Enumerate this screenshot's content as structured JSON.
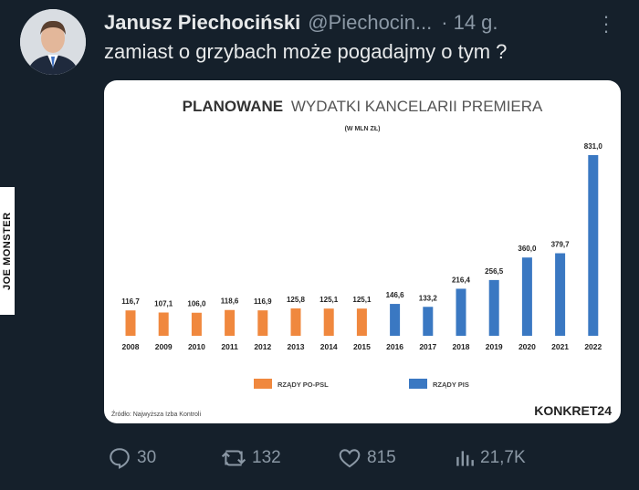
{
  "author": {
    "name": "Janusz Piechociński",
    "handle": "@Piechocin...",
    "time": "14 g."
  },
  "tweet": {
    "text": "zamiast o grzybach może pogadajmy o tym ?"
  },
  "watermark": "JOE MONSTER",
  "actions": {
    "replies": "30",
    "retweets": "132",
    "likes": "815",
    "views": "21,7K"
  },
  "colors": {
    "orange": "#f0883e",
    "blue": "#3a78c2"
  },
  "chart_data": {
    "type": "bar",
    "title_part1": "PLANOWANE",
    "title_part2": "WYDATKI KANCELARII PREMIERA",
    "subtitle": "(W MLN ZŁ)",
    "categories": [
      "2008",
      "2009",
      "2010",
      "2011",
      "2012",
      "2013",
      "2014",
      "2015",
      "2016",
      "2017",
      "2018",
      "2019",
      "2020",
      "2021",
      "2022"
    ],
    "values": [
      116.7,
      107.1,
      106.0,
      118.6,
      116.9,
      125.8,
      125.1,
      125.1,
      146.6,
      133.2,
      216.4,
      256.5,
      360.0,
      379.7,
      831.0
    ],
    "value_labels": [
      "116,7",
      "107,1",
      "106,0",
      "118,6",
      "116,9",
      "125,8",
      "125,1",
      "125,1",
      "146,6",
      "133,2",
      "216,4",
      "256,5",
      "360,0",
      "379,7",
      "831,0"
    ],
    "groups": [
      "orange",
      "orange",
      "orange",
      "orange",
      "orange",
      "orange",
      "orange",
      "orange",
      "blue",
      "blue",
      "blue",
      "blue",
      "blue",
      "blue",
      "blue"
    ],
    "legend": [
      {
        "label": "RZĄDY PO-PSL",
        "color": "orange"
      },
      {
        "label": "RZĄDY PIS",
        "color": "blue"
      }
    ],
    "source": "Źródło: Najwyższa Izba Kontroli",
    "brand": "KONKRET24",
    "ylim": [
      0,
      831
    ]
  }
}
